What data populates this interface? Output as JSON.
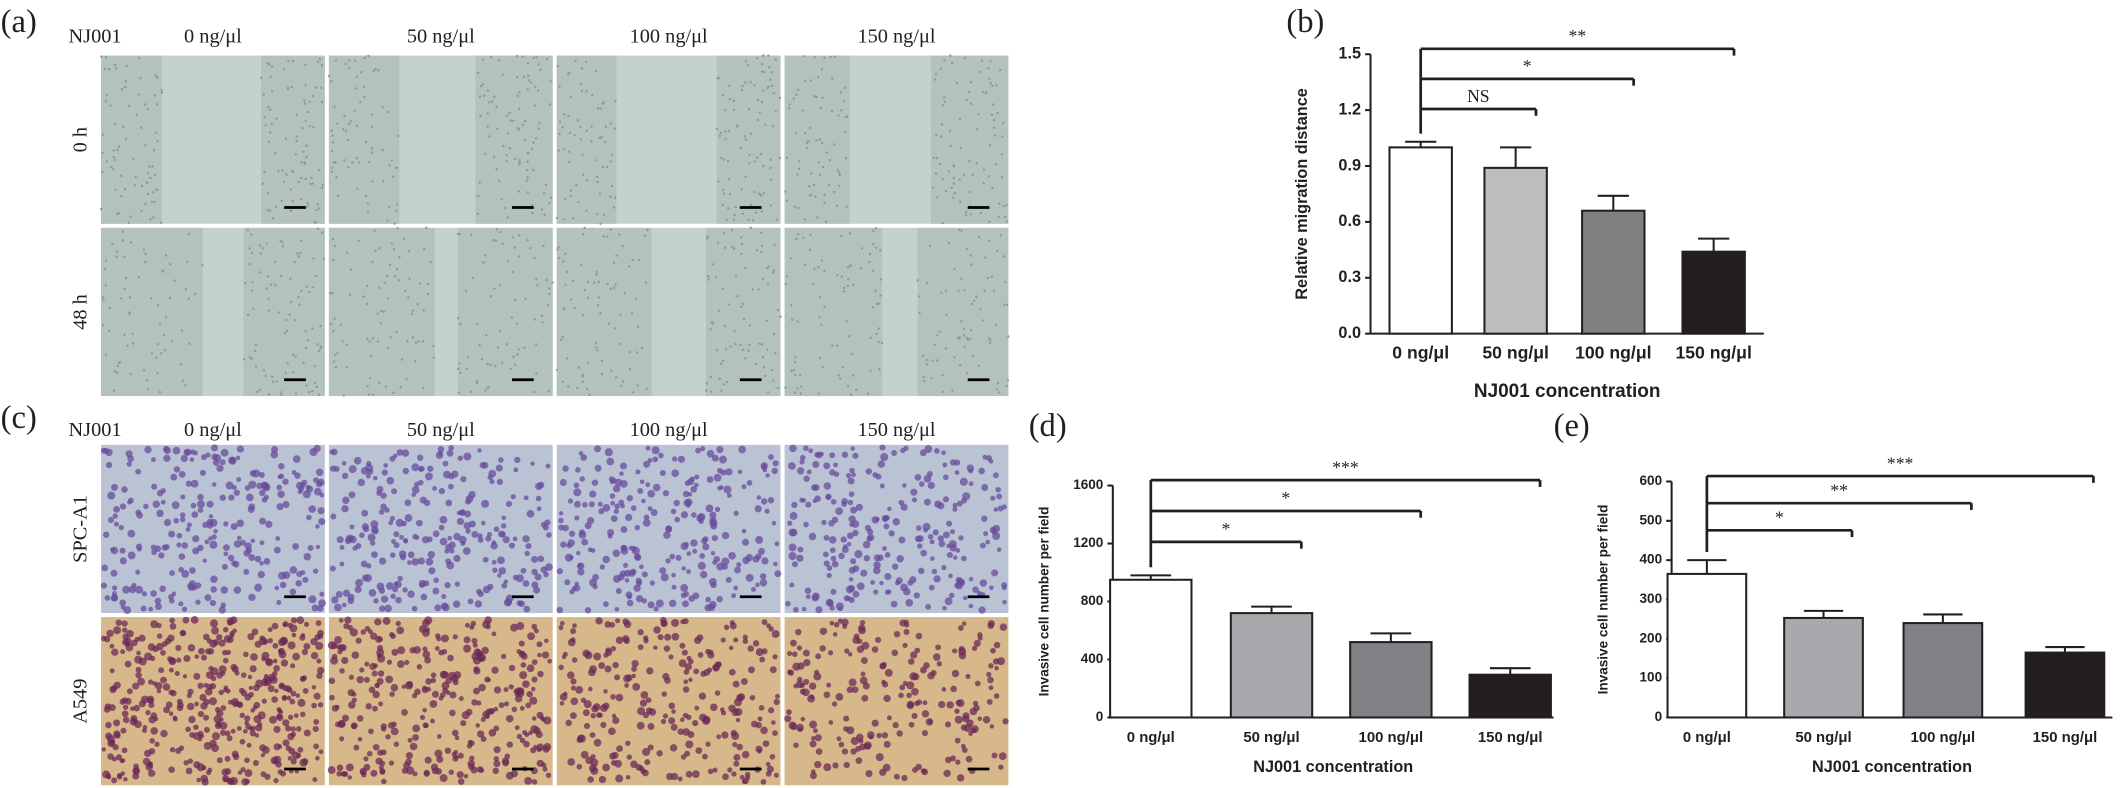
{
  "figure": {
    "panel_labels": [
      "(a)",
      "(b)",
      "(c)",
      "(d)",
      "(e)"
    ],
    "treatment": "NJ001",
    "concentrations": [
      "0 ng/μl",
      "50 ng/μl",
      "100 ng/μl",
      "150 ng/μl"
    ],
    "time_rows": [
      "0 h",
      "48 h"
    ],
    "cell_rows": [
      "SPC-A1",
      "A549"
    ]
  },
  "chart_data": [
    {
      "type": "bar",
      "xlabel": "NJ001 concentration",
      "ylabel": "Relative migration distance",
      "categories": [
        "0 ng/μl",
        "50 ng/μl",
        "100 ng/μl",
        "150 ng/μl"
      ],
      "values": [
        1.0,
        0.89,
        0.66,
        0.44
      ],
      "errors": [
        0.03,
        0.11,
        0.08,
        0.07
      ],
      "colors": [
        "#ffffff",
        "#bdbdbd",
        "#808080",
        "#231f20"
      ],
      "ylim": [
        0,
        1.5
      ],
      "yticks": [
        {
          "value": 0,
          "label": "0.0"
        },
        0.3,
        0.6,
        0.9,
        1.2,
        1.5
      ],
      "significance": [
        "NS",
        "*",
        "**"
      ]
    },
    {
      "type": "bar",
      "xlabel": "NJ001 concentration",
      "ylabel": "Invasive cell number per field",
      "categories": [
        "0 ng/μl",
        "50 ng/μl",
        "100 ng/μl",
        "150 ng/μl"
      ],
      "values": [
        950,
        720,
        520,
        295
      ],
      "errors": [
        30,
        45,
        60,
        45
      ],
      "colors": [
        "#ffffff",
        "#a7a9ac",
        "#808285",
        "#231f20"
      ],
      "ylim": [
        0,
        1600
      ],
      "yticks": [
        0,
        400,
        800,
        1200,
        1600
      ],
      "significance": [
        "*",
        "*",
        "***"
      ]
    },
    {
      "type": "bar",
      "xlabel": "NJ001 concentration",
      "ylabel": "Invasive cell number per field",
      "categories": [
        "0 ng/μl",
        "50 ng/μl",
        "100 ng/μl",
        "150 ng/μl"
      ],
      "values": [
        365,
        253,
        240,
        165
      ],
      "errors": [
        35,
        18,
        22,
        14
      ],
      "colors": [
        "#ffffff",
        "#a7a9ac",
        "#808285",
        "#231f20"
      ],
      "ylim": [
        0,
        600
      ],
      "yticks": [
        0,
        100,
        200,
        300,
        400,
        500,
        600
      ],
      "significance": [
        "*",
        "**",
        "***"
      ]
    }
  ]
}
